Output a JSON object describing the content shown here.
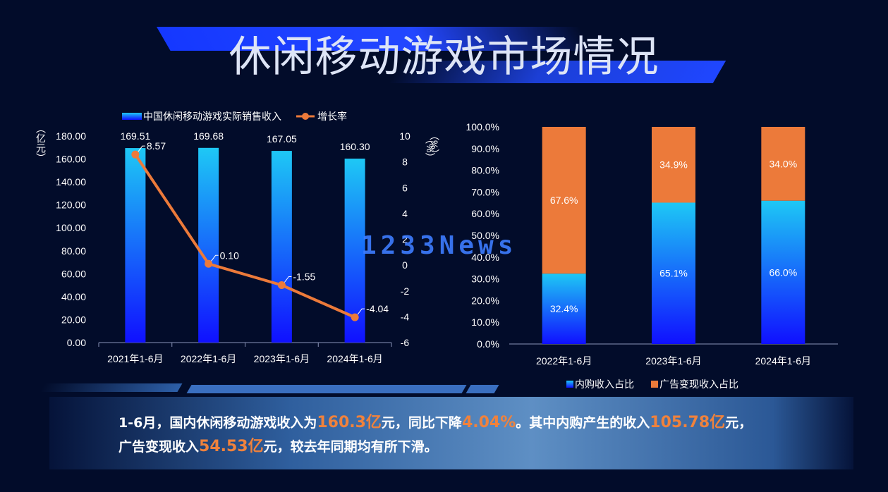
{
  "page_title": "休闲移动游戏市场情况",
  "watermark": "1233News",
  "colors": {
    "bar_blue_top": "#1ec8f5",
    "bar_blue_bottom": "#1010ff",
    "line_orange": "#ec7a3a",
    "bar_orange": "#ec7a3a",
    "background": "#020c2a",
    "highlight": "#f0823c"
  },
  "chart_data": [
    {
      "type": "bar",
      "categories": [
        "2021年1-6月",
        "2022年1-6月",
        "2023年1-6月",
        "2024年1-6月"
      ],
      "series": [
        {
          "name": "中国休闲移动游戏实际销售收入",
          "type": "bar",
          "axis": "left",
          "values": [
            169.51,
            169.68,
            167.05,
            160.3
          ],
          "labels": [
            "169.51",
            "169.68",
            "167.05",
            "160.30"
          ]
        },
        {
          "name": "增长率",
          "type": "line",
          "axis": "right",
          "values": [
            8.57,
            0.1,
            -1.55,
            -4.04
          ],
          "labels": [
            "8.57",
            "0.10",
            "-1.55",
            "-4.04"
          ]
        }
      ],
      "ylabel": "（亿元）",
      "y2label": "（%）",
      "ylim": [
        0,
        180
      ],
      "y2lim": [
        -6,
        10
      ],
      "yticks": [
        "0.00",
        "20.00",
        "40.00",
        "60.00",
        "80.00",
        "100.00",
        "120.00",
        "140.00",
        "160.00",
        "180.00"
      ],
      "y2ticks": [
        "-6",
        "-4",
        "-2",
        "0",
        "2",
        "4",
        "6",
        "8",
        "10"
      ],
      "legend_position": "top"
    },
    {
      "type": "bar",
      "stacked": true,
      "categories": [
        "2022年1-6月",
        "2023年1-6月",
        "2024年1-6月"
      ],
      "series": [
        {
          "name": "内购收入占比",
          "values": [
            32.4,
            65.1,
            66.0
          ],
          "labels": [
            "32.4%",
            "65.1%",
            "66.0%"
          ]
        },
        {
          "name": "广告变现收入占比",
          "values": [
            67.6,
            34.9,
            34.0
          ],
          "labels": [
            "67.6%",
            "34.9%",
            "34.0%"
          ]
        }
      ],
      "ylabel": "（%）",
      "ylim": [
        0,
        100
      ],
      "yticks": [
        "0.0%",
        "10.0%",
        "20.0%",
        "30.0%",
        "40.0%",
        "50.0%",
        "60.0%",
        "70.0%",
        "80.0%",
        "90.0%",
        "100.0%"
      ],
      "legend_position": "bottom"
    }
  ],
  "summary": {
    "line1": [
      {
        "t": "1-6月，国内休闲移动游戏收入为",
        "hl": false
      },
      {
        "t": "160.3亿",
        "hl": true
      },
      {
        "t": "元，同比下降",
        "hl": false
      },
      {
        "t": "4.04%",
        "hl": true
      },
      {
        "t": "。其中内购产生的收入",
        "hl": false
      },
      {
        "t": "105.78亿",
        "hl": true
      },
      {
        "t": "元，",
        "hl": false
      }
    ],
    "line2": [
      {
        "t": "广告变现收入",
        "hl": false
      },
      {
        "t": "54.53亿",
        "hl": true
      },
      {
        "t": "元，较去年同期均有所下滑。",
        "hl": false
      }
    ]
  }
}
